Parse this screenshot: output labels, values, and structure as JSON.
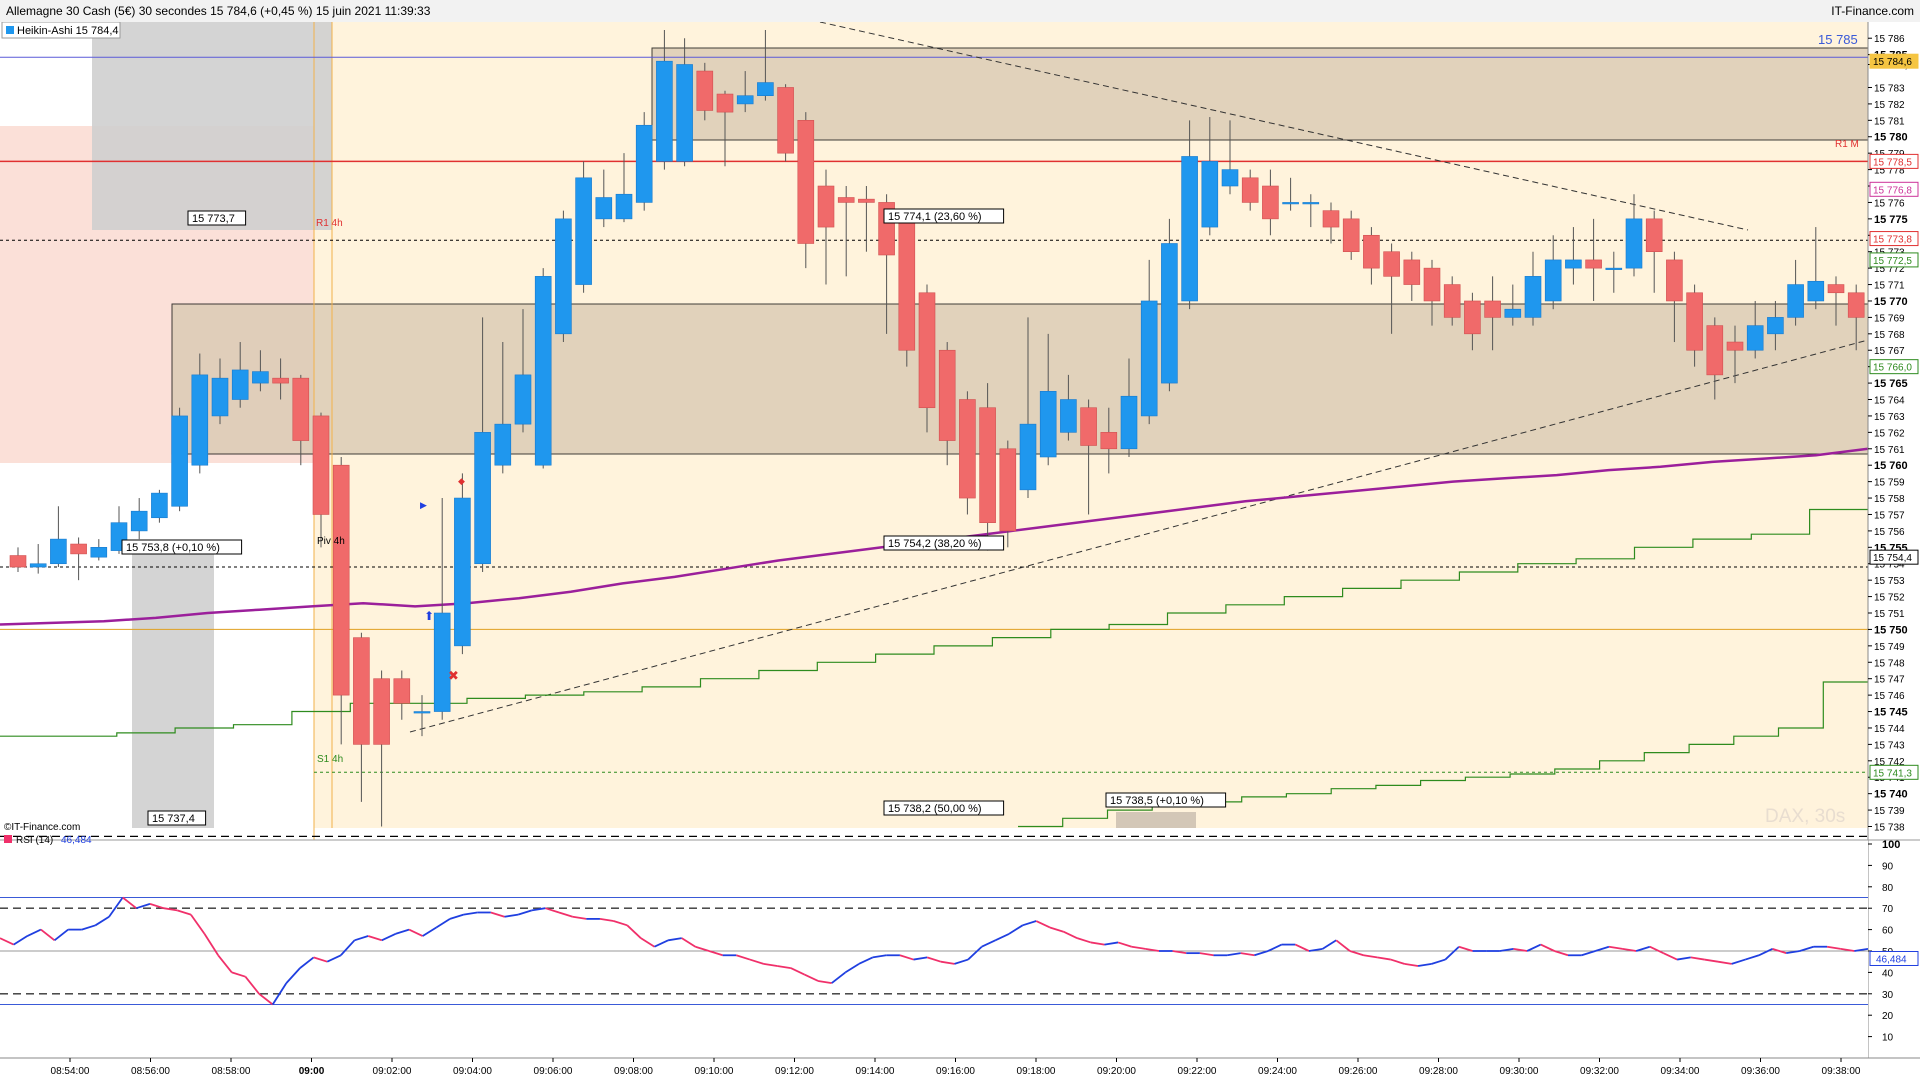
{
  "window": {
    "title": "Allemagne 30 Cash (5€) 30 secondes 15 784,6 (+0,45 %) 15 juin 2021 11:39:33",
    "source": "IT-Finance.com"
  },
  "legend": {
    "main": "Heikin-Ashi 15 784,4",
    "copyright": "©IT-Finance.com",
    "rsi_name": "RSI (14)",
    "rsi_value": "46,484",
    "watermark": "DAX, 30s"
  },
  "colors": {
    "bull": "#1f97ee",
    "bear": "#f06a6a",
    "ma": "#9b1f9b",
    "green_line": "#2e8b1e",
    "rsi_blue": "#1f3fe0",
    "rsi_pink": "#f0306a",
    "resistance": "#e03030",
    "zone_fill": "#d8c8b0",
    "session_fill": "#fff3dc"
  },
  "chart_data": [
    {
      "type": "candlestick",
      "style": "Heikin-Ashi",
      "title": "Allemagne 30 Cash (5€) 30 secondes",
      "x_ticks": [
        "08:54:00",
        "08:56:00",
        "08:58:00",
        "09:00",
        "09:02:00",
        "09:04:00",
        "09:06:00",
        "09:08:00",
        "09:10:00",
        "09:12:00",
        "09:14:00",
        "09:16:00",
        "09:18:00",
        "09:20:00",
        "09:22:00",
        "09:24:00",
        "09:26:00",
        "09:28:00",
        "09:30:00",
        "09:32:00",
        "09:34:00",
        "09:36:00",
        "09:38:00"
      ],
      "y_ticks": [
        "15 786",
        "15 785",
        "15 784,4",
        "15 783",
        "15 782",
        "15 781",
        "15 780",
        "15 779",
        "15 778",
        "15 777",
        "15 776",
        "15 775",
        "15 774",
        "15 773",
        "15 772",
        "15 771",
        "15 770",
        "15 769",
        "15 768",
        "15 767",
        "15 766",
        "15 765",
        "15 764",
        "15 763",
        "15 762",
        "15 761",
        "15 760",
        "15 759",
        "15 758",
        "15 757",
        "15 756",
        "15 755",
        "15 754",
        "15 753",
        "15 752",
        "15 751",
        "15 750",
        "15 749",
        "15 748",
        "15 747",
        "15 746",
        "15 745",
        "15 744",
        "15 743",
        "15 742",
        "15 741",
        "15 740",
        "15 739",
        "15 738"
      ],
      "y_bold": [
        "15 785",
        "15 780",
        "15 775",
        "15 770",
        "15 765",
        "15 760",
        "15 755",
        "15 750",
        "15 745",
        "15 740"
      ],
      "ylim": [
        15737.3,
        15786.5
      ],
      "candles": [
        {
          "o": 15754.5,
          "h": 15755.0,
          "l": 15753.5,
          "c": 15753.8
        },
        {
          "o": 15753.8,
          "h": 15755.2,
          "l": 15753.4,
          "c": 15754.0
        },
        {
          "o": 15754.0,
          "h": 15757.5,
          "l": 15753.8,
          "c": 15755.5
        },
        {
          "o": 15755.2,
          "h": 15755.6,
          "l": 15753.0,
          "c": 15754.6
        },
        {
          "o": 15754.4,
          "h": 15755.5,
          "l": 15754.2,
          "c": 15755.0
        },
        {
          "o": 15754.8,
          "h": 15757.5,
          "l": 15754.6,
          "c": 15756.5
        },
        {
          "o": 15756.0,
          "h": 15758.0,
          "l": 15755.5,
          "c": 15757.2
        },
        {
          "o": 15756.8,
          "h": 15758.5,
          "l": 15756.5,
          "c": 15758.3
        },
        {
          "o": 15757.5,
          "h": 15763.5,
          "l": 15757.2,
          "c": 15763.0
        },
        {
          "o": 15760.0,
          "h": 15766.8,
          "l": 15759.5,
          "c": 15765.5
        },
        {
          "o": 15763.0,
          "h": 15766.5,
          "l": 15762.5,
          "c": 15765.3
        },
        {
          "o": 15764.0,
          "h": 15767.5,
          "l": 15763.5,
          "c": 15765.8
        },
        {
          "o": 15765.0,
          "h": 15767.0,
          "l": 15764.5,
          "c": 15765.7
        },
        {
          "o": 15765.3,
          "h": 15766.5,
          "l": 15764.0,
          "c": 15765.0
        },
        {
          "o": 15765.3,
          "h": 15765.5,
          "l": 15760.0,
          "c": 15761.5
        },
        {
          "o": 15763.0,
          "h": 15763.2,
          "l": 15755.0,
          "c": 15757.0
        },
        {
          "o": 15760.0,
          "h": 15760.5,
          "l": 15743.0,
          "c": 15746.0
        },
        {
          "o": 15749.5,
          "h": 15749.8,
          "l": 15739.5,
          "c": 15743.0
        },
        {
          "o": 15747.0,
          "h": 15747.5,
          "l": 15738.0,
          "c": 15743.0
        },
        {
          "o": 15747.0,
          "h": 15747.5,
          "l": 15744.5,
          "c": 15745.5
        },
        {
          "o": 15745.0,
          "h": 15746.0,
          "l": 15743.5,
          "c": 15745.0
        },
        {
          "o": 15745.0,
          "h": 15758.0,
          "l": 15744.5,
          "c": 15751.0
        },
        {
          "o": 15749.0,
          "h": 15759.5,
          "l": 15748.5,
          "c": 15758.0
        },
        {
          "o": 15754.0,
          "h": 15769.0,
          "l": 15753.5,
          "c": 15762.0
        },
        {
          "o": 15760.0,
          "h": 15767.5,
          "l": 15759.5,
          "c": 15762.5
        },
        {
          "o": 15762.5,
          "h": 15769.5,
          "l": 15762.0,
          "c": 15765.5
        },
        {
          "o": 15760.0,
          "h": 15772.0,
          "l": 15759.8,
          "c": 15771.5
        },
        {
          "o": 15768.0,
          "h": 15775.5,
          "l": 15767.5,
          "c": 15775.0
        },
        {
          "o": 15771.0,
          "h": 15778.5,
          "l": 15770.5,
          "c": 15777.5
        },
        {
          "o": 15775.0,
          "h": 15778.0,
          "l": 15774.5,
          "c": 15776.3
        },
        {
          "o": 15775.0,
          "h": 15779.0,
          "l": 15774.8,
          "c": 15776.5
        },
        {
          "o": 15776.0,
          "h": 15781.5,
          "l": 15775.5,
          "c": 15780.7
        },
        {
          "o": 15778.5,
          "h": 15786.5,
          "l": 15778.0,
          "c": 15784.6
        },
        {
          "o": 15778.5,
          "h": 15786.0,
          "l": 15778.2,
          "c": 15784.4
        },
        {
          "o": 15784.0,
          "h": 15784.5,
          "l": 15781.0,
          "c": 15781.6
        },
        {
          "o": 15782.6,
          "h": 15782.8,
          "l": 15778.2,
          "c": 15781.5
        },
        {
          "o": 15782.0,
          "h": 15784.0,
          "l": 15781.5,
          "c": 15782.5
        },
        {
          "o": 15782.5,
          "h": 15786.5,
          "l": 15782.2,
          "c": 15783.3
        },
        {
          "o": 15783.0,
          "h": 15783.2,
          "l": 15778.5,
          "c": 15779.0
        },
        {
          "o": 15781.0,
          "h": 15781.5,
          "l": 15772.0,
          "c": 15773.5
        },
        {
          "o": 15777.0,
          "h": 15778.0,
          "l": 15771.0,
          "c": 15774.5
        },
        {
          "o": 15776.3,
          "h": 15777.0,
          "l": 15771.5,
          "c": 15776.0
        },
        {
          "o": 15776.2,
          "h": 15777.0,
          "l": 15773.0,
          "c": 15776.0
        },
        {
          "o": 15776.0,
          "h": 15776.5,
          "l": 15768.0,
          "c": 15772.8
        },
        {
          "o": 15775.0,
          "h": 15775.5,
          "l": 15766.0,
          "c": 15767.0
        },
        {
          "o": 15770.5,
          "h": 15771.0,
          "l": 15762.0,
          "c": 15763.5
        },
        {
          "o": 15767.0,
          "h": 15767.5,
          "l": 15760.0,
          "c": 15761.5
        },
        {
          "o": 15764.0,
          "h": 15764.5,
          "l": 15757.0,
          "c": 15758.0
        },
        {
          "o": 15763.5,
          "h": 15765.0,
          "l": 15754.8,
          "c": 15756.5
        },
        {
          "o": 15761.0,
          "h": 15761.5,
          "l": 15755.0,
          "c": 15756.0
        },
        {
          "o": 15758.5,
          "h": 15769.0,
          "l": 15758.0,
          "c": 15762.5
        },
        {
          "o": 15760.5,
          "h": 15768.0,
          "l": 15760.0,
          "c": 15764.5
        },
        {
          "o": 15762.0,
          "h": 15765.5,
          "l": 15761.5,
          "c": 15764.0
        },
        {
          "o": 15763.5,
          "h": 15764.0,
          "l": 15757.0,
          "c": 15761.2
        },
        {
          "o": 15762.0,
          "h": 15763.5,
          "l": 15759.5,
          "c": 15761.0
        },
        {
          "o": 15761.0,
          "h": 15766.5,
          "l": 15760.5,
          "c": 15764.2
        },
        {
          "o": 15763.0,
          "h": 15772.5,
          "l": 15762.5,
          "c": 15770.0
        },
        {
          "o": 15765.0,
          "h": 15775.0,
          "l": 15764.5,
          "c": 15773.5
        },
        {
          "o": 15770.0,
          "h": 15781.0,
          "l": 15769.5,
          "c": 15778.8
        },
        {
          "o": 15774.5,
          "h": 15781.2,
          "l": 15774.0,
          "c": 15778.5
        },
        {
          "o": 15777.0,
          "h": 15781.0,
          "l": 15776.5,
          "c": 15778.0
        },
        {
          "o": 15777.5,
          "h": 15778.0,
          "l": 15775.5,
          "c": 15776.0
        },
        {
          "o": 15777.0,
          "h": 15778.0,
          "l": 15774.0,
          "c": 15775.0
        },
        {
          "o": 15776.0,
          "h": 15777.5,
          "l": 15775.5,
          "c": 15776.0
        },
        {
          "o": 15776.0,
          "h": 15776.5,
          "l": 15774.5,
          "c": 15776.0
        },
        {
          "o": 15775.5,
          "h": 15776.0,
          "l": 15773.5,
          "c": 15774.5
        },
        {
          "o": 15775.0,
          "h": 15775.5,
          "l": 15772.5,
          "c": 15773.0
        },
        {
          "o": 15774.0,
          "h": 15774.5,
          "l": 15771.0,
          "c": 15772.0
        },
        {
          "o": 15773.0,
          "h": 15773.5,
          "l": 15768.0,
          "c": 15771.5
        },
        {
          "o": 15772.5,
          "h": 15773.0,
          "l": 15770.0,
          "c": 15771.0
        },
        {
          "o": 15772.0,
          "h": 15772.5,
          "l": 15768.5,
          "c": 15770.0
        },
        {
          "o": 15771.0,
          "h": 15771.5,
          "l": 15768.5,
          "c": 15769.0
        },
        {
          "o": 15770.0,
          "h": 15770.5,
          "l": 15767.0,
          "c": 15768.0
        },
        {
          "o": 15770.0,
          "h": 15771.5,
          "l": 15767.0,
          "c": 15769.0
        },
        {
          "o": 15769.0,
          "h": 15771.0,
          "l": 15768.5,
          "c": 15769.5
        },
        {
          "o": 15769.0,
          "h": 15773.0,
          "l": 15768.5,
          "c": 15771.5
        },
        {
          "o": 15770.0,
          "h": 15774.0,
          "l": 15769.5,
          "c": 15772.5
        },
        {
          "o": 15772.0,
          "h": 15774.5,
          "l": 15771.0,
          "c": 15772.5
        },
        {
          "o": 15772.5,
          "h": 15775.0,
          "l": 15770.0,
          "c": 15772.0
        },
        {
          "o": 15772.0,
          "h": 15773.0,
          "l": 15770.5,
          "c": 15772.0
        },
        {
          "o": 15772.0,
          "h": 15776.5,
          "l": 15771.5,
          "c": 15775.0
        },
        {
          "o": 15775.0,
          "h": 15775.5,
          "l": 15770.5,
          "c": 15773.0
        },
        {
          "o": 15772.5,
          "h": 15773.0,
          "l": 15767.5,
          "c": 15770.0
        },
        {
          "o": 15770.5,
          "h": 15771.0,
          "l": 15766.0,
          "c": 15767.0
        },
        {
          "o": 15768.5,
          "h": 15769.0,
          "l": 15764.0,
          "c": 15765.5
        },
        {
          "o": 15767.5,
          "h": 15768.5,
          "l": 15765.0,
          "c": 15767.0
        },
        {
          "o": 15767.0,
          "h": 15770.0,
          "l": 15766.5,
          "c": 15768.5
        },
        {
          "o": 15768.0,
          "h": 15770.0,
          "l": 15767.0,
          "c": 15769.0
        },
        {
          "o": 15769.0,
          "h": 15772.5,
          "l": 15768.5,
          "c": 15771.0
        },
        {
          "o": 15770.0,
          "h": 15774.5,
          "l": 15769.5,
          "c": 15771.2
        },
        {
          "o": 15771.0,
          "h": 15771.5,
          "l": 15768.5,
          "c": 15770.5
        },
        {
          "o": 15770.5,
          "h": 15771.0,
          "l": 15767.0,
          "c": 15769.0
        },
        {
          "o": 15769.0,
          "h": 15769.5,
          "l": 15766.5,
          "c": 15767.5
        },
        {
          "o": 15768.5,
          "h": 15769.0,
          "l": 15767.0,
          "c": 15768.0
        },
        {
          "o": 15768.0,
          "h": 15769.5,
          "l": 15767.0,
          "c": 15768.5
        },
        {
          "o": 15768.5,
          "h": 15774.0,
          "l": 15768.0,
          "c": 15772.5
        },
        {
          "o": 15771.5,
          "h": 15774.8,
          "l": 15771.0,
          "c": 15773.0
        },
        {
          "o": 15772.0,
          "h": 15773.0,
          "l": 15771.5,
          "c": 15772.5
        },
        {
          "o": 15772.5,
          "h": 15773.5,
          "l": 15771.2,
          "c": 15772.6
        }
      ],
      "moving_average": [
        15750.3,
        15750.4,
        15750.5,
        15750.7,
        15751.0,
        15751.2,
        15751.4,
        15751.6,
        15751.4,
        15751.6,
        15751.9,
        15752.3,
        15752.8,
        15753.2,
        15753.7,
        15754.2,
        15754.6,
        15755.0,
        15755.4,
        15755.8,
        15756.2,
        15756.6,
        15757.0,
        15757.4,
        15757.8,
        15758.1,
        15758.4,
        15758.7,
        15759.0,
        15759.2,
        15759.4,
        15759.7,
        15759.9,
        15760.2,
        15760.4,
        15760.6,
        15761.0
      ],
      "green_line": [
        15743.5,
        15743.5,
        15743.7,
        15744.0,
        15744.2,
        15745.0,
        15745.5,
        15745.5,
        15745.8,
        15746.0,
        15746.2,
        15746.5,
        15747.0,
        15747.5,
        15748.0,
        15748.5,
        15749.0,
        15749.5,
        15750.0,
        15750.3,
        15751.0,
        15751.5,
        15752.0,
        15752.5,
        15753.0,
        15753.5,
        15754.0,
        15754.3,
        15755.0,
        15755.5,
        15755.8,
        15757.3
      ],
      "green_line_lower": [
        15738.0,
        15738.5,
        15739.0,
        15739.2,
        15739.5,
        15739.8,
        15740.0,
        15740.3,
        15740.5,
        15740.8,
        15741.0,
        15741.2,
        15741.5,
        15742.0,
        15742.5,
        15743.0,
        15743.5,
        15744.0,
        15746.8
      ],
      "horizontal_levels": [
        {
          "label": "R1 M",
          "value": 15778.5
        },
        {
          "label": "R1 4h",
          "value": 15773.7
        },
        {
          "label": "Piv 4h",
          "value": 15753.8
        },
        {
          "label": "S1 4h",
          "value": 15741.3
        },
        {
          "value": 15784.6
        },
        {
          "value": 15760.0
        },
        {
          "value": 15750.0
        },
        {
          "value": 15769.2
        },
        {
          "value": 15737.4
        }
      ],
      "fib_labels": [
        "15 774,1 (23,60 %)",
        "15 754,2 (38,20 %)",
        "15 738,2 (50,00 %)"
      ],
      "box_labels": [
        "15 773,7",
        "15 753,8 (+0,10 %)",
        "15 737,4",
        "15 738,5 (+0,10 %)"
      ],
      "axis_badges": [
        {
          "text": "15 784,6",
          "value": 15784.6,
          "color": "#f5c542"
        },
        {
          "text": "15 778,5",
          "value": 15778.5,
          "color": "#e03030"
        },
        {
          "text": "15 776,8",
          "value": 15776.8,
          "color": "#cc3399"
        },
        {
          "text": "15 773,8",
          "value": 15773.8,
          "color": "#e03030"
        },
        {
          "text": "15 772,5",
          "value": 15772.5,
          "color": "#2e8b1e"
        },
        {
          "text": "15 766,0",
          "value": 15766.0,
          "color": "#2e8b1e"
        },
        {
          "text": "15 754,4",
          "value": 15754.4,
          "color": "#000000"
        },
        {
          "text": "15 741,3",
          "value": 15741.3,
          "color": "#2e8b1e"
        }
      ],
      "upper_label": "15 785"
    },
    {
      "type": "line",
      "title": "RSI (14)",
      "ylim": [
        0,
        100
      ],
      "y_ticks": [
        "100",
        "90",
        "80",
        "70",
        "60",
        "50",
        "40",
        "30",
        "20",
        "10"
      ],
      "levels": [
        70,
        30
      ],
      "bands": [
        75,
        25
      ],
      "mid": 50,
      "last": "46,484",
      "values": [
        56,
        53,
        57,
        60,
        55,
        60,
        60,
        62,
        66,
        75,
        70,
        72,
        70,
        69,
        67,
        58,
        48,
        40,
        38,
        30,
        25,
        35,
        42,
        47,
        45,
        48,
        55,
        57,
        55,
        58,
        60,
        57,
        61,
        65,
        67,
        68,
        68,
        66,
        67,
        69,
        70,
        68,
        66,
        65,
        65,
        64,
        62,
        56,
        52,
        55,
        56,
        52,
        50,
        48,
        48,
        46,
        44,
        43,
        42,
        39,
        36,
        35,
        40,
        44,
        47,
        48,
        48,
        46,
        47,
        45,
        44,
        46,
        52,
        55,
        58,
        62,
        64,
        61,
        59,
        56,
        54,
        53,
        54,
        52,
        51,
        50,
        50,
        49,
        49,
        48,
        48,
        49,
        48,
        50,
        53,
        53,
        50,
        51,
        55,
        50,
        48,
        47,
        46,
        44,
        43,
        44,
        46,
        52,
        50,
        50,
        50,
        51,
        50,
        53,
        50,
        48,
        48,
        50,
        52,
        51,
        50,
        52,
        49,
        46,
        47,
        46,
        45,
        44,
        46,
        48,
        51,
        49,
        50,
        52,
        52,
        51,
        50,
        51
      ]
    }
  ]
}
